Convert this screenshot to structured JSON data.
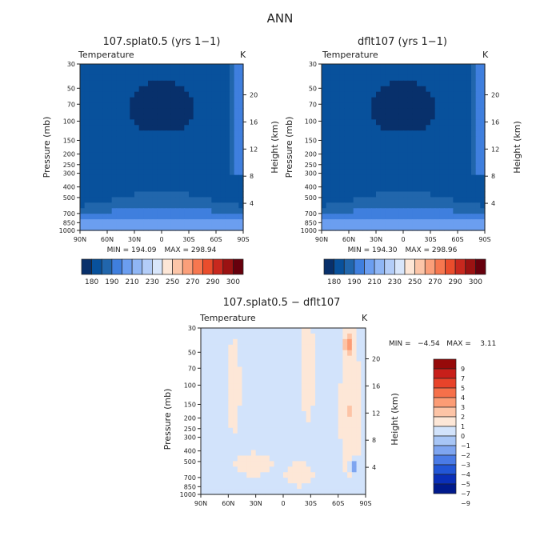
{
  "main_title": "ANN",
  "colors": {
    "abs": [
      "#08306b",
      "#08519c",
      "#2166ac",
      "#3f7fde",
      "#6b9ef0",
      "#8fb6f5",
      "#b3cdf8",
      "#d8e6fb",
      "#fde6d6",
      "#fcc5a8",
      "#fb9f7a",
      "#f7774f",
      "#ea4d2c",
      "#c8281e",
      "#9b1212",
      "#67000d"
    ],
    "diff": [
      "#001a8c",
      "#0a2fb8",
      "#2256d6",
      "#4a7be6",
      "#7ea5f0",
      "#a8c6f6",
      "#d2e3fb",
      "#fde7d7",
      "#fdc4a6",
      "#fc9c75",
      "#f6704a",
      "#e8432a",
      "#c81f1a",
      "#960a0a"
    ]
  },
  "chart_data": [
    {
      "type": "heatmap",
      "title": "107.splat0.5 (yrs 1−1)",
      "variable": "Temperature",
      "units": "K",
      "ylabel": "Pressure (mb)",
      "ylabel_right": "Height (km)",
      "x_ticks": [
        "90N",
        "60N",
        "30N",
        "0",
        "30S",
        "60S",
        "90S"
      ],
      "y_ticks": [
        "30",
        "50",
        "70",
        "100",
        "150",
        "200",
        "250",
        "300",
        "400",
        "500",
        "700",
        "850",
        "1000"
      ],
      "y_ticks_right": [
        "20",
        "16",
        "12",
        "8",
        "4"
      ],
      "min_label": "MIN = 194.09",
      "max_label": "MAX = 298.94",
      "min": 194.09,
      "max": 298.94,
      "colorbar_labels": [
        "180",
        "190",
        "210",
        "230",
        "250",
        "270",
        "290",
        "300"
      ]
    },
    {
      "type": "heatmap",
      "title": "dflt107 (yrs 1−1)",
      "variable": "Temperature",
      "units": "K",
      "ylabel": "Pressure (mb)",
      "ylabel_right": "Height (km)",
      "x_ticks": [
        "90N",
        "60N",
        "30N",
        "0",
        "30S",
        "60S",
        "90S"
      ],
      "y_ticks": [
        "30",
        "50",
        "70",
        "100",
        "150",
        "200",
        "250",
        "300",
        "400",
        "500",
        "700",
        "850",
        "1000"
      ],
      "y_ticks_right": [
        "20",
        "16",
        "12",
        "8",
        "4"
      ],
      "min_label": "MIN = 194.30",
      "max_label": "MAX = 298.96",
      "min": 194.3,
      "max": 298.96,
      "colorbar_labels": [
        "180",
        "190",
        "210",
        "230",
        "250",
        "270",
        "290",
        "300"
      ]
    },
    {
      "type": "heatmap",
      "title": "107.splat0.5 − dflt107",
      "variable": "Temperature",
      "units": "K",
      "ylabel": "Pressure (mb)",
      "ylabel_right": "Height (km)",
      "x_ticks": [
        "90N",
        "60N",
        "30N",
        "0",
        "30S",
        "60S",
        "90S"
      ],
      "y_ticks": [
        "30",
        "50",
        "70",
        "100",
        "150",
        "200",
        "250",
        "300",
        "400",
        "500",
        "700",
        "850",
        "1000"
      ],
      "y_ticks_right": [
        "20",
        "16",
        "12",
        "8",
        "4"
      ],
      "minmax_label": "MIN =   −4.54   MAX =    3.11",
      "min": -4.54,
      "max": 3.11,
      "colorbar_labels": [
        "9",
        "7",
        "5",
        "4",
        "3",
        "2",
        "1",
        "0",
        "−1",
        "−2",
        "−3",
        "−4",
        "−5",
        "−7",
        "−9"
      ]
    }
  ]
}
